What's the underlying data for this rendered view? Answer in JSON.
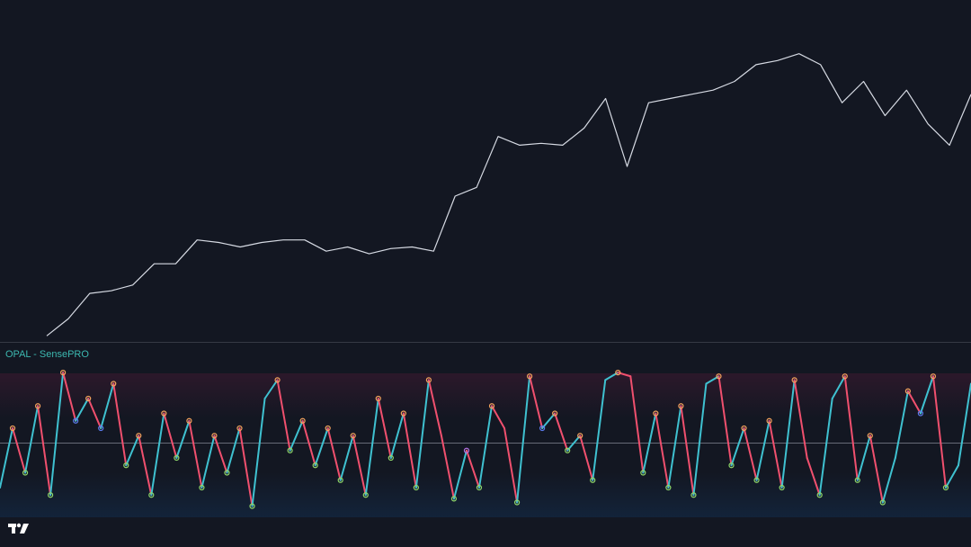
{
  "chart_data": [
    {
      "type": "line",
      "color": "#d6dae3",
      "values": [
        1.3,
        6.6,
        14.5,
        15.3,
        17.1,
        23.7,
        23.7,
        31.1,
        30.3,
        28.9,
        30.3,
        31.1,
        31.1,
        27.6,
        28.9,
        26.8,
        28.4,
        28.9,
        27.6,
        44.7,
        47.4,
        63.2,
        60.5,
        61.1,
        60.5,
        65.8,
        75.0,
        53.9,
        73.7,
        75.0,
        76.3,
        77.6,
        80.3,
        85.5,
        86.8,
        88.9,
        85.5,
        73.7,
        80.3,
        69.7,
        77.6,
        67.1,
        60.5,
        76.3
      ],
      "ylim": [
        0,
        100
      ]
    },
    {
      "type": "line",
      "title": "OPAL - SensePRO",
      "up_color": "#3fc1d0",
      "down_color": "#f0506e",
      "hline": 0,
      "values": [
        -60,
        20,
        -40,
        50,
        -70,
        95,
        30,
        60,
        20,
        80,
        -30,
        10,
        -70,
        40,
        -20,
        30,
        -60,
        10,
        -40,
        20,
        -85,
        60,
        85,
        -10,
        30,
        -30,
        20,
        -50,
        10,
        -70,
        60,
        -20,
        40,
        -60,
        85,
        10,
        -75,
        -10,
        -60,
        50,
        20,
        -80,
        90,
        20,
        40,
        -10,
        10,
        -50,
        85,
        95,
        90,
        -40,
        40,
        -60,
        50,
        -70,
        80,
        90,
        -30,
        20,
        -50,
        30,
        -60,
        85,
        -20,
        -70,
        60,
        90,
        -50,
        10,
        -80,
        -20,
        70,
        40,
        90,
        -60,
        -30,
        80
      ],
      "ylim": [
        -100,
        100
      ]
    }
  ]
}
